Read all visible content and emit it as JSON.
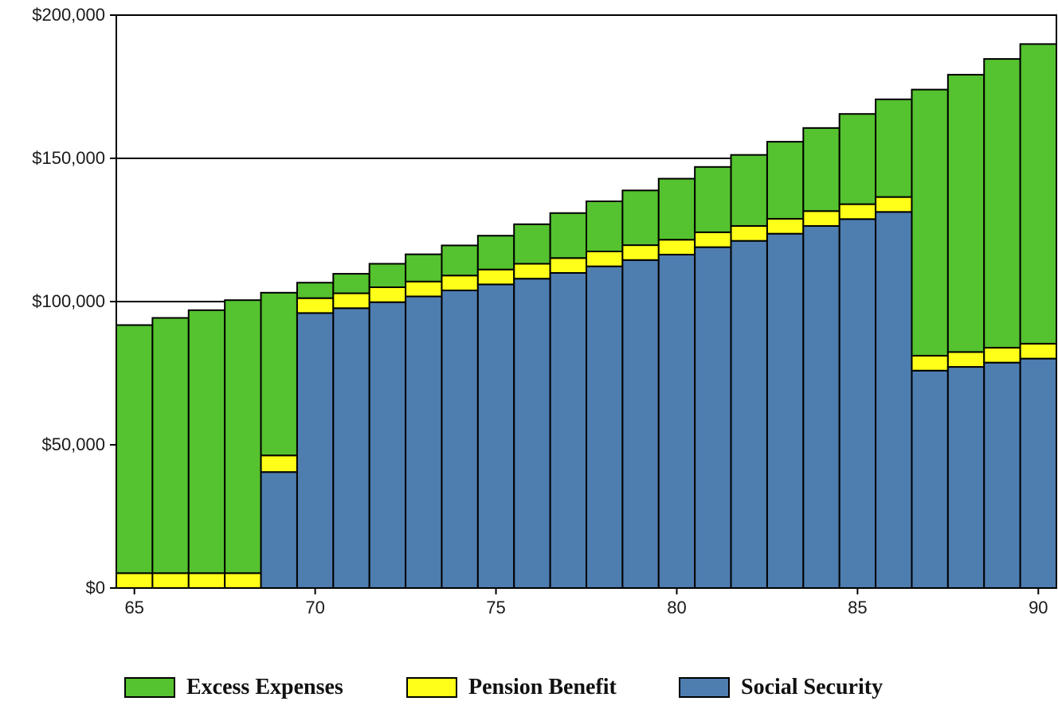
{
  "chart_data": {
    "type": "bar",
    "stacked": true,
    "x": [
      65,
      66,
      67,
      68,
      69,
      70,
      71,
      72,
      73,
      74,
      75,
      76,
      77,
      78,
      79,
      80,
      81,
      82,
      83,
      84,
      85,
      86,
      87,
      88,
      89,
      90
    ],
    "xticks": [
      65,
      70,
      75,
      80,
      85,
      90
    ],
    "ytick_values": [
      0,
      50000,
      100000,
      150000,
      200000
    ],
    "ytick_labels": [
      "$0",
      "$50,000",
      "$100,000",
      "$150,000",
      "$200,000"
    ],
    "ylim": [
      0,
      200000
    ],
    "grid_y": [
      100000,
      150000
    ],
    "legend_position": "bottom",
    "series": [
      {
        "name": "Social Security",
        "color": "#4E7DB0",
        "values": [
          0,
          0,
          0,
          0,
          40500,
          96000,
          97700,
          99800,
          101800,
          103900,
          106000,
          108000,
          110000,
          112300,
          114500,
          116400,
          119000,
          121200,
          123700,
          126400,
          128800,
          131300,
          75900,
          77200,
          78700,
          80100
        ]
      },
      {
        "name": "Pension Benefit",
        "color": "#FFFF19",
        "values": [
          5200,
          5200,
          5200,
          5200,
          5800,
          5200,
          5200,
          5200,
          5200,
          5200,
          5200,
          5200,
          5200,
          5200,
          5200,
          5200,
          5200,
          5200,
          5200,
          5200,
          5200,
          5200,
          5200,
          5200,
          5200,
          5200
        ]
      },
      {
        "name": "Excess Expenses",
        "color": "#55C22F",
        "values": [
          86600,
          89100,
          91800,
          95300,
          56800,
          5400,
          6800,
          8200,
          9500,
          10500,
          11800,
          13800,
          15700,
          17500,
          19100,
          21300,
          22800,
          24800,
          26900,
          29000,
          31500,
          34100,
          92900,
          96800,
          100800,
          104600
        ]
      }
    ],
    "legend": [
      {
        "name": "Excess Expenses",
        "color": "#55C22F"
      },
      {
        "name": "Pension Benefit",
        "color": "#FFFF19"
      },
      {
        "name": "Social Security",
        "color": "#4E7DB0"
      }
    ]
  }
}
